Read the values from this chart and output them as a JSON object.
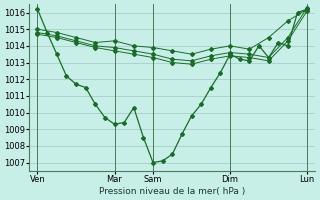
{
  "bg_color": "#c8eee8",
  "grid_color": "#a0c8c0",
  "line_color": "#1a6b2a",
  "title": "",
  "xlabel": "Pression niveau de la mer( hPa )",
  "ylim": [
    1006.5,
    1016.5
  ],
  "yticks": [
    1007,
    1008,
    1009,
    1010,
    1011,
    1012,
    1013,
    1014,
    1015,
    1016
  ],
  "day_positions": [
    0,
    48,
    72,
    120,
    168
  ],
  "day_labels": [
    "Ven",
    "Mar",
    "Sam",
    "Dim",
    "Lun"
  ],
  "lines": [
    {
      "x": [
        0,
        6,
        12,
        18,
        24,
        30,
        36,
        42,
        48,
        54,
        60,
        66,
        72,
        78,
        84,
        90,
        96,
        102,
        108,
        114,
        120,
        126,
        132,
        138,
        144,
        150,
        156,
        162,
        168
      ],
      "y": [
        1016.2,
        1014.8,
        1013.5,
        1012.2,
        1011.7,
        1011.5,
        1010.5,
        1009.7,
        1009.3,
        1009.4,
        1010.3,
        1008.5,
        1007.0,
        1007.1,
        1007.5,
        1008.7,
        1009.8,
        1010.5,
        1011.5,
        1012.4,
        1013.5,
        1013.2,
        1013.1,
        1014.0,
        1013.3,
        1014.2,
        1014.0,
        1016.0,
        1016.2
      ]
    },
    {
      "x": [
        0,
        12,
        24,
        36,
        48,
        60,
        72,
        84,
        96,
        108,
        120,
        132,
        144,
        156,
        168
      ],
      "y": [
        1015.0,
        1014.8,
        1014.5,
        1014.2,
        1014.3,
        1014.0,
        1013.9,
        1013.7,
        1013.5,
        1013.8,
        1014.0,
        1013.8,
        1014.5,
        1015.5,
        1016.2
      ]
    },
    {
      "x": [
        0,
        12,
        24,
        36,
        48,
        60,
        72,
        84,
        96,
        108,
        120,
        132,
        144,
        156,
        168
      ],
      "y": [
        1014.8,
        1014.6,
        1014.3,
        1014.0,
        1013.9,
        1013.7,
        1013.5,
        1013.2,
        1013.1,
        1013.4,
        1013.6,
        1013.5,
        1013.3,
        1014.5,
        1016.3
      ]
    },
    {
      "x": [
        0,
        12,
        24,
        36,
        48,
        60,
        72,
        84,
        96,
        108,
        120,
        132,
        144,
        156,
        168
      ],
      "y": [
        1014.7,
        1014.5,
        1014.2,
        1013.9,
        1013.7,
        1013.5,
        1013.3,
        1013.0,
        1012.9,
        1013.2,
        1013.4,
        1013.3,
        1013.1,
        1014.3,
        1016.1
      ]
    }
  ]
}
